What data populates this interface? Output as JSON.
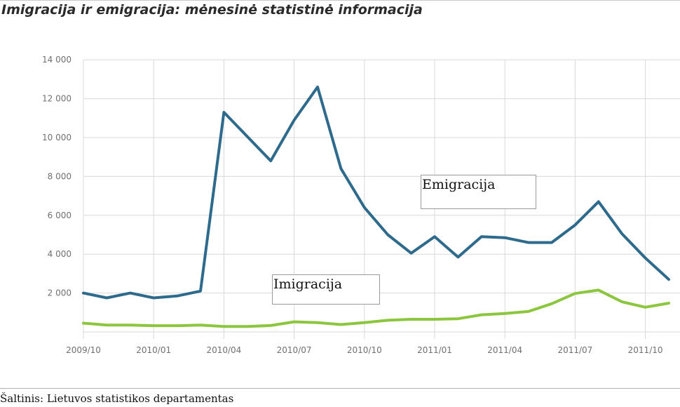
{
  "title": "Imigracija ir emigracija: mėnesinė statistinė informacija",
  "source": "Šaltinis: Lietuvos statistikos departamentas",
  "colors": {
    "emigracija": "#2e6a8c",
    "imigracija": "#8cc63e",
    "grid": "#d9d9d9",
    "axis_text": "#707070"
  },
  "chart_data": {
    "type": "line",
    "title": "Imigracija ir emigracija: mėnesinė statistinė informacija",
    "x_tick_labels": [
      "2009/10",
      "2010/01",
      "2010/04",
      "2010/07",
      "2010/10",
      "2011/01",
      "2011/04",
      "2011/07",
      "2011/10"
    ],
    "y_tick_labels": [
      "2 000",
      "4 000",
      "6 000",
      "8 000",
      "10 000",
      "12 000",
      "14 000"
    ],
    "ylim": [
      0,
      14000
    ],
    "grid": true,
    "x": [
      "2009/10",
      "2009/11",
      "2009/12",
      "2010/01",
      "2010/02",
      "2010/03",
      "2010/04",
      "2010/05",
      "2010/06",
      "2010/07",
      "2010/08",
      "2010/09",
      "2010/10",
      "2010/11",
      "2010/12",
      "2011/01",
      "2011/02",
      "2011/03",
      "2011/04",
      "2011/05",
      "2011/06",
      "2011/07",
      "2011/08",
      "2011/09",
      "2011/10",
      "2011/11"
    ],
    "series": [
      {
        "name": "Emigracija",
        "values": [
          2000,
          1750,
          2000,
          1750,
          1850,
          2100,
          11300,
          10050,
          8800,
          10900,
          12600,
          8400,
          6400,
          5000,
          4050,
          4900,
          3850,
          4900,
          4850,
          4600,
          4600,
          5500,
          6700,
          5050,
          3800,
          2700
        ]
      },
      {
        "name": "Imigracija",
        "values": [
          450,
          350,
          350,
          320,
          320,
          350,
          280,
          280,
          330,
          520,
          480,
          380,
          480,
          600,
          650,
          650,
          680,
          880,
          950,
          1050,
          1450,
          1980,
          2150,
          1550,
          1270,
          1480
        ]
      }
    ]
  }
}
